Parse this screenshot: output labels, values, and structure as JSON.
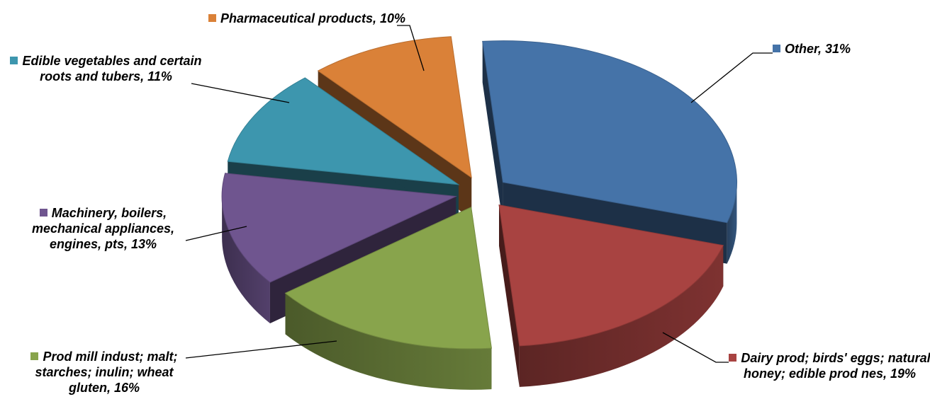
{
  "chart_data": {
    "type": "pie",
    "title": "",
    "slices": [
      {
        "name": "Other",
        "value": 31,
        "value_label": "31%",
        "color": "#4573A8"
      },
      {
        "name": "Dairy prod; birds' eggs; natural honey; edible prod nes",
        "value": 19,
        "value_label": "19%",
        "color": "#A84341"
      },
      {
        "name": "Prod mill indust; malt; starches; inulin; wheat gluten",
        "value": 16,
        "value_label": "16%",
        "color": "#88A44C"
      },
      {
        "name": "Machinery, boilers, mechanical appliances, engines, pts",
        "value": 13,
        "value_label": "13%",
        "color": "#6F558F"
      },
      {
        "name": "Edible vegetables and certain roots and tubers",
        "value": 11,
        "value_label": "11%",
        "color": "#3D96AE"
      },
      {
        "name": "Pharmaceutical products",
        "value": 10,
        "value_label": "10%",
        "color": "#DA8138"
      }
    ],
    "legend": "none",
    "style": "3d-exploded"
  }
}
